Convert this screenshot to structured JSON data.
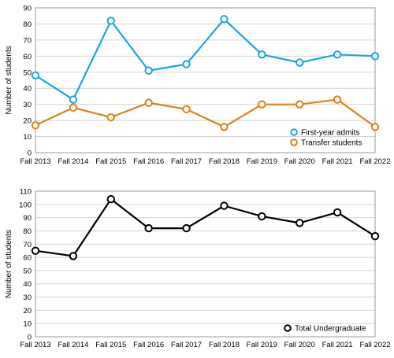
{
  "chart_data": [
    {
      "type": "line",
      "categories": [
        "Fall 2013",
        "Fall 2014",
        "Fall 2015",
        "Fall 2016",
        "Fall 2017",
        "Fall 2018",
        "Fall 2019",
        "Fall 2020",
        "Fall 2021",
        "Fall 2022"
      ],
      "series": [
        {
          "name": "First-year admits",
          "color": "#1aa3e8",
          "values": [
            48,
            33,
            82,
            51,
            55,
            83,
            61,
            56,
            61,
            60
          ]
        },
        {
          "name": "Transfer students",
          "color": "#e07f17",
          "values": [
            17,
            28,
            22,
            31,
            27,
            16,
            30,
            30,
            33,
            16
          ]
        }
      ],
      "title": "",
      "xlabel": "",
      "ylabel": "Number of students",
      "ylim": [
        0,
        90
      ],
      "yticks": [
        0,
        10,
        20,
        30,
        40,
        50,
        60,
        70,
        80,
        90
      ],
      "grid": true,
      "legend": "bottom-right"
    },
    {
      "type": "line",
      "categories": [
        "Fall 2013",
        "Fall 2014",
        "Fall 2015",
        "Fall 2016",
        "Fall 2017",
        "Fall 2018",
        "Fall 2019",
        "Fall 2020",
        "Fall 2021",
        "Fall 2022"
      ],
      "series": [
        {
          "name": "Total Undergraduate",
          "color": "#000000",
          "values": [
            65,
            61,
            104,
            82,
            82,
            99,
            91,
            86,
            94,
            76
          ]
        }
      ],
      "title": "",
      "xlabel": "",
      "ylabel": "Number of students",
      "ylim": [
        0,
        110
      ],
      "yticks": [
        0,
        10,
        20,
        30,
        40,
        50,
        60,
        70,
        80,
        90,
        100,
        110
      ],
      "grid": true,
      "legend": "bottom-right"
    }
  ]
}
